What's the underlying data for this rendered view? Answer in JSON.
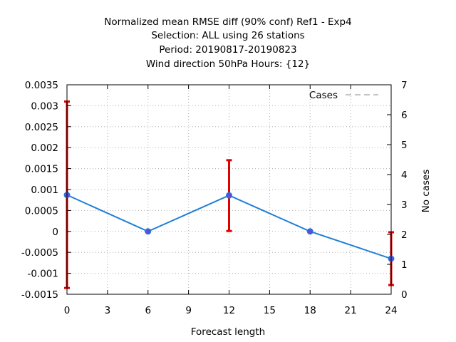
{
  "chart_data": {
    "type": "line",
    "title_lines": [
      "Normalized mean RMSE diff (90% conf) Ref1 - Exp4",
      "Selection: ALL using    26 stations",
      "Period: 20190817-20190823",
      "Wind direction 50hPa   Hours: {12}"
    ],
    "xlabel": "Forecast length",
    "ylabel": "",
    "y2label": "No cases",
    "xlim": [
      0,
      24
    ],
    "ylim": [
      -0.0015,
      0.0035
    ],
    "y2lim": [
      0,
      7
    ],
    "x_ticks": [
      "0",
      "3",
      "6",
      "9",
      "12",
      "15",
      "18",
      "21",
      "24"
    ],
    "y_ticks": [
      "0.0035",
      "0.003",
      "0.0025",
      "0.002",
      "0.0015",
      "0.001",
      "0.0005",
      "0",
      "-0.0005",
      "-0.001",
      "-0.0015"
    ],
    "y2_ticks": [
      "7",
      "6",
      "5",
      "4",
      "3",
      "2",
      "1",
      "0"
    ],
    "grid": true,
    "legend_position": "top-right",
    "legend": [
      "Cases"
    ],
    "series": [
      {
        "type": "line",
        "color": "#1f7fd8",
        "marker_color": "#5b4fd9",
        "x": [
          0,
          6,
          12,
          18,
          24
        ],
        "values": [
          0.00087,
          0.0,
          0.00086,
          0.0,
          -0.00065
        ]
      }
    ],
    "error_bars": {
      "color": "#e00000",
      "x": [
        0,
        12,
        24
      ],
      "low": [
        -0.00135,
        1e-05,
        -0.00128
      ],
      "high": [
        0.0031,
        0.0017,
        -2e-05
      ]
    },
    "cases": {
      "color": "#888888",
      "x": [
        0,
        24
      ],
      "values": [
        7,
        7
      ]
    }
  }
}
